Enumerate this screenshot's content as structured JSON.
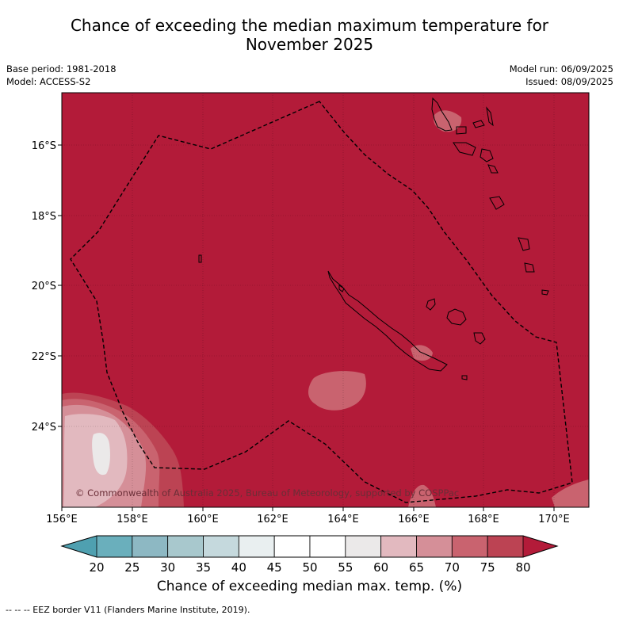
{
  "title": {
    "line1": "Chance of exceeding the median maximum temperature for",
    "line2": "November 2025"
  },
  "meta": {
    "base_period": "Base period: 1981-2018",
    "model": "Model: ACCESS-S2",
    "model_run": "Model run: 06/09/2025",
    "issued": "Issued: 08/09/2025"
  },
  "map": {
    "lat_labels": [
      "16°S",
      "18°S",
      "20°S",
      "22°S",
      "24°S"
    ],
    "lon_labels": [
      "156°E",
      "158°E",
      "160°E",
      "162°E",
      "164°E",
      "166°E",
      "168°E",
      "170°E"
    ],
    "copyright": "© Commonwealth of Australia 2025, Bureau of Meteorology, supported by COSPPac",
    "background_color": "#b31b39"
  },
  "colorbar": {
    "ticks": [
      "20",
      "25",
      "30",
      "35",
      "40",
      "45",
      "50",
      "55",
      "60",
      "65",
      "70",
      "75",
      "80"
    ],
    "colors": [
      "#6aafbc",
      "#8db8c3",
      "#a8c8cd",
      "#c5d9dd",
      "#e9eff0",
      "#ffffff",
      "#ffffff",
      "#ebe9e9",
      "#e2b9bf",
      "#d58f98",
      "#c9636f",
      "#bc4353"
    ],
    "low_color": "#4fa0b0",
    "high_color": "#b31b39",
    "label": "Chance of exceeding median max. temp. (%)"
  },
  "footnote": "--  --  -- EEZ border V11 (Flanders Marine Institute, 2019)."
}
